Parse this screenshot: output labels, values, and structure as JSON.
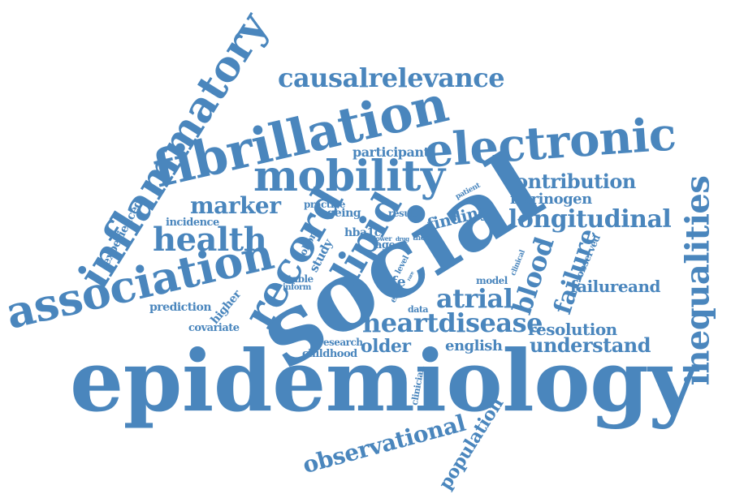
{
  "cloud": {
    "color": "#4a86bd",
    "words": [
      "epidemiology",
      "social",
      "inflammatory",
      "fibrillation",
      "electronic",
      "mobility",
      "association",
      "causalrelevance",
      "inequalities",
      "record",
      "lipid",
      "longitudinal",
      "health",
      "heartdisease",
      "atrial",
      "blood",
      "failure",
      "observational",
      "population",
      "marker",
      "contribution",
      "fibrinogen",
      "failureand",
      "resolution",
      "understand",
      "older",
      "english",
      "finding",
      "participant",
      "experienced",
      "incidence",
      "prediction",
      "covariate",
      "childhood",
      "research",
      "higher",
      "cohort",
      "study",
      "practice",
      "ageing",
      "hba1c",
      "age",
      "result",
      "stable",
      "inform",
      "life",
      "model",
      "data",
      "ehrs",
      "clinician",
      "clinical",
      "observed",
      "patient",
      "thesis",
      "lower",
      "drug",
      "risk",
      "level",
      "rare"
    ]
  }
}
